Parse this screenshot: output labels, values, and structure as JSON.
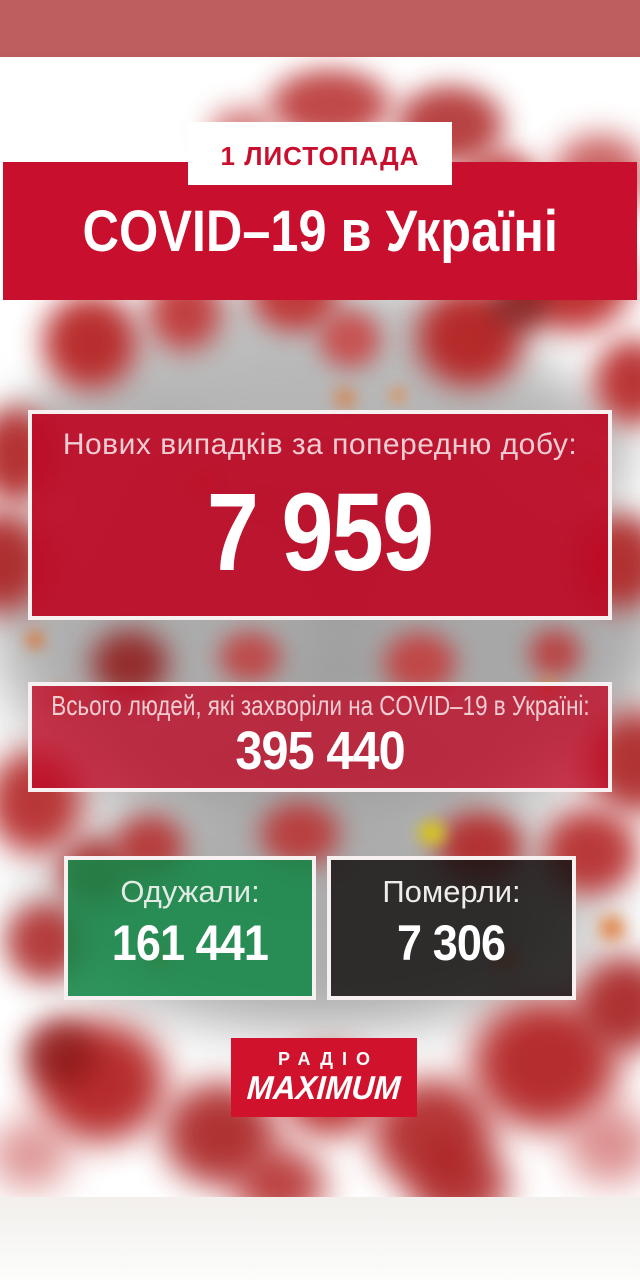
{
  "poster": {
    "date_badge": "1 ЛИСТОПАДА",
    "title": "COVID–19 в Україні",
    "new_cases": {
      "label": "Нових випадків за попередню добу:",
      "value": "7 959"
    },
    "total_cases": {
      "label": "Всього людей, які захворіли на COVID–19 в Україні:",
      "value": "395 440"
    },
    "recovered": {
      "label": "Одужали:",
      "value": "161 441"
    },
    "deaths": {
      "label": "Померли:",
      "value": "7 306"
    },
    "logo": {
      "line1": "РАДІО",
      "line2": "MAXIMUM"
    }
  },
  "colors": {
    "top_bar": "#bf5e5e",
    "banner_red": "#c8102e",
    "box_red": "#bc0a26",
    "recovered_green": "#128646",
    "deaths_black": "#181414",
    "logo_red": "#d0122c",
    "label_pink": "#f2ccd3",
    "background_gray": "#f2f1ed"
  }
}
